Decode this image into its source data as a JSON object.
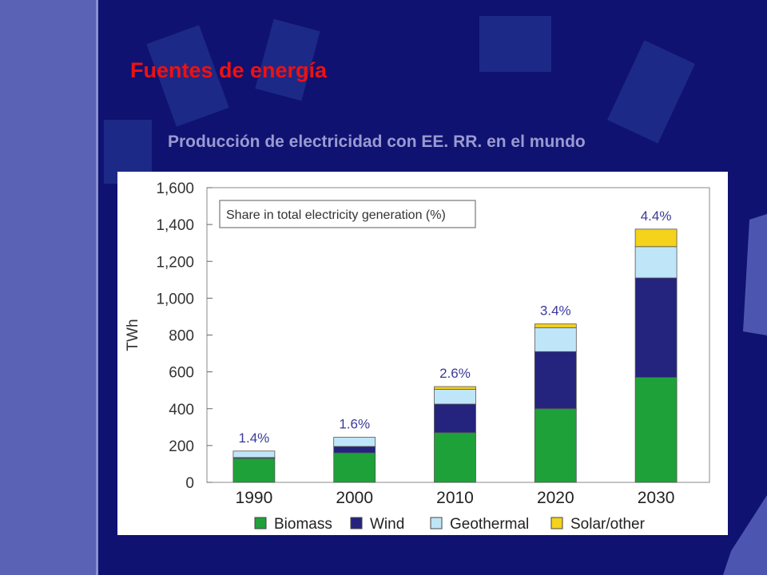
{
  "slide": {
    "title": "Fuentes de energía",
    "subtitle": "Producción de electricidad con EE. RR. en el mundo"
  },
  "colors": {
    "background": "#0f1270",
    "sidebar": "#5a62b6",
    "title": "#ee1111",
    "subtitle": "#9a9ad2"
  },
  "chart_data": {
    "type": "bar",
    "stacked": true,
    "title": "",
    "note": "Share in total electricity generation (%)",
    "xlabel": "",
    "ylabel": "TWh",
    "ylim": [
      0,
      1600
    ],
    "yticks": [
      0,
      200,
      400,
      600,
      800,
      1000,
      1200,
      1400,
      1600
    ],
    "ytick_labels": [
      "0",
      "200",
      "400",
      "600",
      "800",
      "1,000",
      "1,200",
      "1,400",
      "1,600"
    ],
    "categories": [
      "1990",
      "2000",
      "2010",
      "2020",
      "2030"
    ],
    "share_labels": [
      "1.4%",
      "1.6%",
      "2.6%",
      "3.4%",
      "4.4%"
    ],
    "grid": false,
    "legend_position": "bottom",
    "series": [
      {
        "name": "Biomass",
        "color": "#1fa13a",
        "values": [
          130,
          160,
          270,
          400,
          570
        ]
      },
      {
        "name": "Wind",
        "color": "#24237e",
        "values": [
          5,
          35,
          155,
          310,
          540
        ]
      },
      {
        "name": "Geothermal",
        "color": "#bfe6f8",
        "values": [
          35,
          50,
          80,
          130,
          170
        ]
      },
      {
        "name": "Solar/other",
        "color": "#f5d21b",
        "values": [
          0,
          0,
          15,
          20,
          95
        ]
      }
    ]
  }
}
